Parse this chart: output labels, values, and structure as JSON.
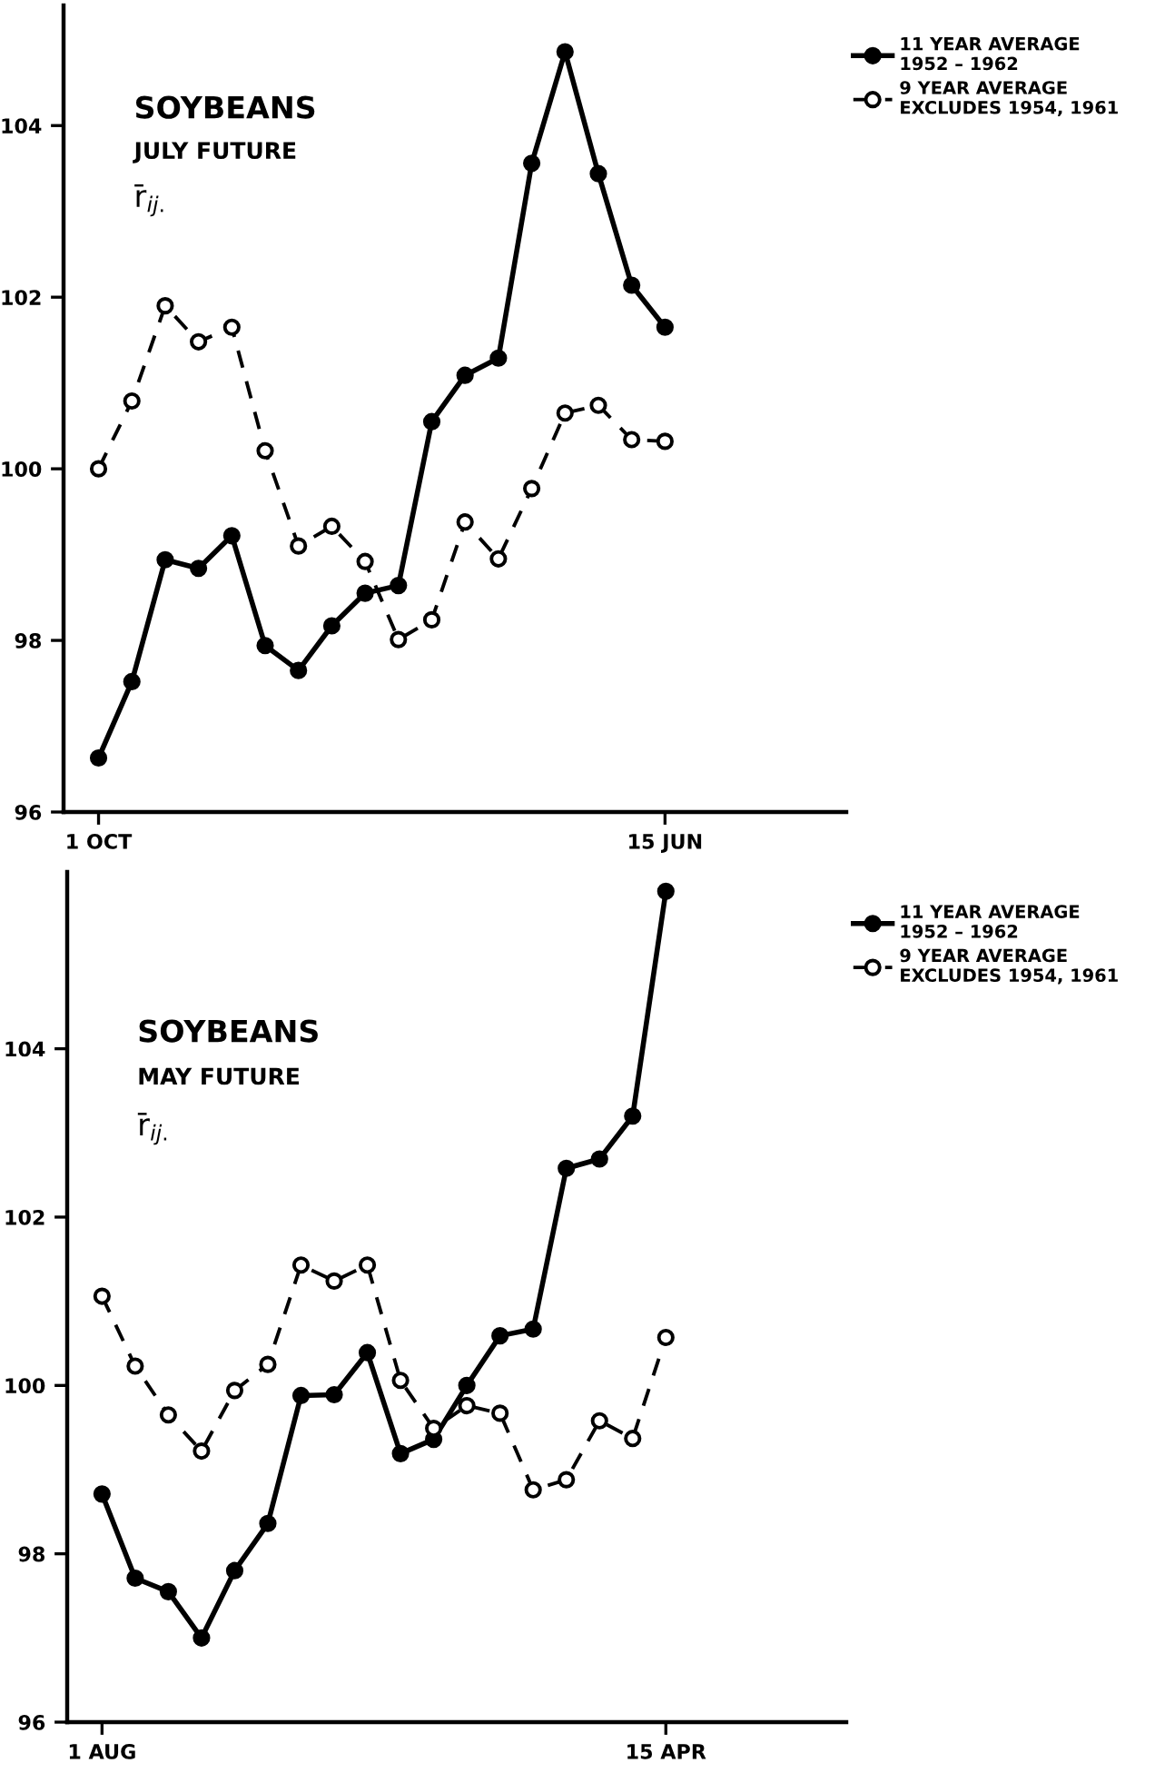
{
  "chart_data": [
    {
      "type": "line",
      "title": "SOYBEANS",
      "subtitle": "JULY FUTURE",
      "annotations": [
        "r̄$_{ij.}$"
      ],
      "categories": [
        "1 OCT",
        null,
        null,
        null,
        null,
        null,
        null,
        null,
        null,
        null,
        null,
        null,
        null,
        null,
        null,
        null,
        null,
        "15 JUN"
      ],
      "ylim": [
        96,
        105.4
      ],
      "yticks": [
        96,
        98,
        100,
        102,
        104
      ],
      "grid": false,
      "legend": "top right",
      "series": [
        {
          "name": "11 YEAR AVERAGE\n1952 – 1962",
          "color": "#000000",
          "marker": "circle",
          "line_style": "solid",
          "values": [
            96.63,
            97.52,
            98.94,
            98.84,
            99.22,
            97.94,
            97.65,
            98.17,
            98.55,
            98.64,
            100.55,
            101.09,
            101.29,
            103.56,
            104.86,
            103.44,
            102.14,
            101.65
          ]
        },
        {
          "name": "9 YEAR AVERAGE\nEXCLUDES 1954, 1961",
          "color": "#000000",
          "marker": "circle",
          "line_style": "dashed",
          "values": [
            100.0,
            100.79,
            101.9,
            101.48,
            101.65,
            100.21,
            99.1,
            99.33,
            98.92,
            98.01,
            98.24,
            99.38,
            98.95,
            99.77,
            100.65,
            100.74,
            100.34,
            100.32
          ]
        }
      ]
    },
    {
      "type": "line",
      "title": "SOYBEANS",
      "subtitle": "MAY FUTURE",
      "annotations": [
        "r̄$_{ij.}$"
      ],
      "categories": [
        "1 AUG",
        null,
        null,
        null,
        null,
        null,
        null,
        null,
        null,
        null,
        null,
        null,
        null,
        null,
        null,
        null,
        null,
        "15 APR"
      ],
      "ylim": [
        96,
        106.1
      ],
      "yticks": [
        96,
        98,
        100,
        102,
        104
      ],
      "grid": false,
      "legend": "top right",
      "series": [
        {
          "name": "11 YEAR AVERAGE\n1952 – 1962",
          "color": "#000000",
          "marker": "circle",
          "line_style": "solid",
          "values": [
            98.71,
            97.71,
            97.55,
            97.0,
            97.8,
            98.36,
            99.88,
            99.89,
            100.39,
            99.19,
            99.36,
            100.0,
            100.59,
            100.67,
            102.58,
            102.69,
            103.2,
            105.87
          ]
        },
        {
          "name": "9 YEAR AVERAGE\nEXCLUDES 1954, 1961",
          "color": "#000000",
          "marker": "circle",
          "line_style": "dashed",
          "values": [
            101.06,
            100.23,
            99.65,
            99.22,
            99.94,
            100.25,
            101.43,
            101.24,
            101.43,
            100.06,
            99.49,
            99.76,
            99.67,
            98.76,
            98.88,
            99.58,
            99.37,
            100.57
          ]
        }
      ]
    }
  ]
}
